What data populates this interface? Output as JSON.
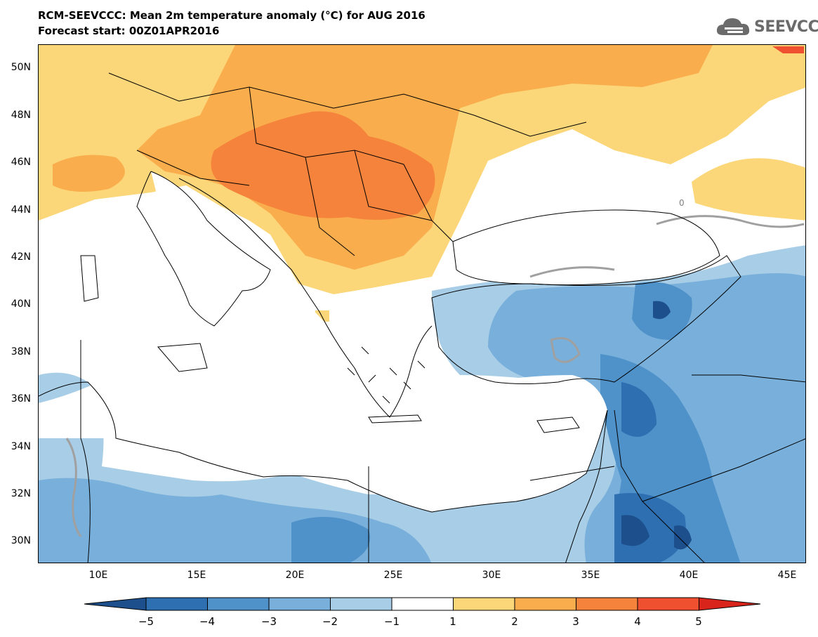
{
  "header": {
    "title": "RCM-SEEVCCC: Mean 2m temperature anomaly (°C) for AUG 2016",
    "subtitle": "Forecast start: 00Z01APR2016"
  },
  "logo": {
    "text": "SEEVCCC"
  },
  "axes": {
    "lat_labels": [
      "50N",
      "48N",
      "46N",
      "44N",
      "42N",
      "40N",
      "38N",
      "36N",
      "34N",
      "32N",
      "30N"
    ],
    "lon_labels": [
      "10E",
      "15E",
      "20E",
      "25E",
      "30E",
      "35E",
      "40E",
      "45E"
    ]
  },
  "contour_label": "0",
  "colorbar": {
    "labels": [
      "−5",
      "−4",
      "−3",
      "−2",
      "−1",
      "1",
      "2",
      "3",
      "4",
      "5"
    ],
    "colors": [
      "#1c4f8c",
      "#2d6fb0",
      "#4f91c9",
      "#79b0db",
      "#a8cde6",
      "#ffffff",
      "#fcd77a",
      "#f9ad4c",
      "#f5833c",
      "#ef5030",
      "#d9241c"
    ]
  },
  "palette": {
    "pos1": "#fcd77a",
    "pos2": "#f9ad4c",
    "pos3": "#f5833c",
    "pos4": "#ef5030",
    "neg1": "#a8cde6",
    "neg2": "#79b0db",
    "neg3": "#4f91c9",
    "neg4": "#2d6fb0",
    "neg5": "#1c4f8c"
  }
}
